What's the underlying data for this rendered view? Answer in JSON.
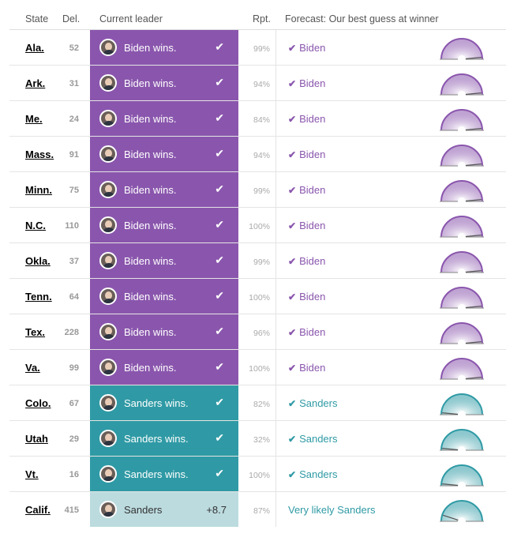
{
  "header": {
    "state": "State",
    "del": "Del.",
    "leader": "Current leader",
    "rpt": "Rpt.",
    "forecast": "Forecast: Our best guess at winner"
  },
  "colors": {
    "biden": "#8a56ad",
    "sanders": "#2f9aa5",
    "lean": "#bcdbdf"
  },
  "rows": [
    {
      "state": "Ala.",
      "del": "52",
      "leader": "Biden wins.",
      "check": "✔",
      "rpt": "99%",
      "forecast": "Biden",
      "forecast_check": "✔",
      "cand": "biden",
      "gauge": 0.97
    },
    {
      "state": "Ark.",
      "del": "31",
      "leader": "Biden wins.",
      "check": "✔",
      "rpt": "94%",
      "forecast": "Biden",
      "forecast_check": "✔",
      "cand": "biden",
      "gauge": 0.97
    },
    {
      "state": "Me.",
      "del": "24",
      "leader": "Biden wins.",
      "check": "✔",
      "rpt": "84%",
      "forecast": "Biden",
      "forecast_check": "✔",
      "cand": "biden",
      "gauge": 0.97
    },
    {
      "state": "Mass.",
      "del": "91",
      "leader": "Biden wins.",
      "check": "✔",
      "rpt": "94%",
      "forecast": "Biden",
      "forecast_check": "✔",
      "cand": "biden",
      "gauge": 0.97
    },
    {
      "state": "Minn.",
      "del": "75",
      "leader": "Biden wins.",
      "check": "✔",
      "rpt": "99%",
      "forecast": "Biden",
      "forecast_check": "✔",
      "cand": "biden",
      "gauge": 0.97
    },
    {
      "state": "N.C.",
      "del": "110",
      "leader": "Biden wins.",
      "check": "✔",
      "rpt": "100%",
      "forecast": "Biden",
      "forecast_check": "✔",
      "cand": "biden",
      "gauge": 0.97
    },
    {
      "state": "Okla.",
      "del": "37",
      "leader": "Biden wins.",
      "check": "✔",
      "rpt": "99%",
      "forecast": "Biden",
      "forecast_check": "✔",
      "cand": "biden",
      "gauge": 0.97
    },
    {
      "state": "Tenn.",
      "del": "64",
      "leader": "Biden wins.",
      "check": "✔",
      "rpt": "100%",
      "forecast": "Biden",
      "forecast_check": "✔",
      "cand": "biden",
      "gauge": 0.97
    },
    {
      "state": "Tex.",
      "del": "228",
      "leader": "Biden wins.",
      "check": "✔",
      "rpt": "96%",
      "forecast": "Biden",
      "forecast_check": "✔",
      "cand": "biden",
      "gauge": 0.97
    },
    {
      "state": "Va.",
      "del": "99",
      "leader": "Biden wins.",
      "check": "✔",
      "rpt": "100%",
      "forecast": "Biden",
      "forecast_check": "✔",
      "cand": "biden",
      "gauge": 0.97
    },
    {
      "state": "Colo.",
      "del": "67",
      "leader": "Sanders wins.",
      "check": "✔",
      "rpt": "82%",
      "forecast": "Sanders",
      "forecast_check": "✔",
      "cand": "sanders",
      "gauge": 0.03
    },
    {
      "state": "Utah",
      "del": "29",
      "leader": "Sanders wins.",
      "check": "✔",
      "rpt": "32%",
      "forecast": "Sanders",
      "forecast_check": "✔",
      "cand": "sanders",
      "gauge": 0.03
    },
    {
      "state": "Vt.",
      "del": "16",
      "leader": "Sanders wins.",
      "check": "✔",
      "rpt": "100%",
      "forecast": "Sanders",
      "forecast_check": "✔",
      "cand": "sanders",
      "gauge": 0.03
    },
    {
      "state": "Calif.",
      "del": "415",
      "leader": "Sanders",
      "margin": "+8.7",
      "rpt": "87%",
      "forecast": "Very likely Sanders",
      "cand": "lean",
      "gauge": 0.1
    }
  ]
}
